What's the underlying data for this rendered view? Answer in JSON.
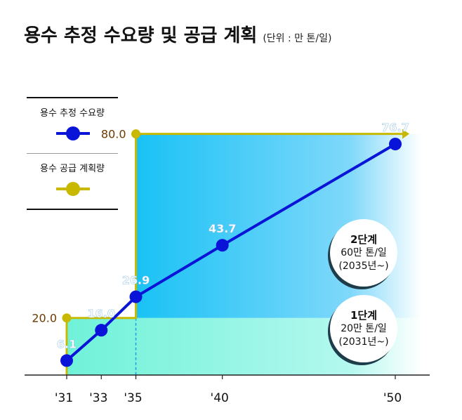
{
  "title": "용수 추정 수요량 및 공급 계획",
  "unit": "(단위 : 만 톤/일)",
  "legend": {
    "demand": "용수 추정 수요량",
    "supply": "용수 공급 계획량"
  },
  "phases": [
    {
      "name": "2단계",
      "capacity": "60만 톤/일",
      "year": "(2035년~)"
    },
    {
      "name": "1단계",
      "capacity": "20만 톤/일",
      "year": "(2031년~)"
    }
  ],
  "colors": {
    "demand": "#0a14d8",
    "supply": "#c9b800",
    "phase1": "#7ff5dc",
    "phase2": "#1ec6f5",
    "axis_value": "#6b3a00"
  },
  "chart_data": {
    "type": "line",
    "title": "용수 추정 수요량 및 공급 계획",
    "x_ticks": [
      "'31",
      "'33",
      "'35",
      "'40",
      "'50"
    ],
    "series": [
      {
        "name": "용수 추정 수요량",
        "x": [
          2031,
          2033,
          2035,
          2040,
          2050
        ],
        "values": [
          6.1,
          16.0,
          26.9,
          43.7,
          76.7
        ],
        "labels": [
          "6.1",
          "16.0",
          "26.9",
          "43.7",
          "76.7"
        ]
      },
      {
        "name": "용수 공급 계획량",
        "steps": [
          {
            "x_start": 2031,
            "x_end": 2035,
            "value": 20.0,
            "label": "20.0"
          },
          {
            "x_start": 2035,
            "x_end": 2050,
            "value": 80.0,
            "label": "80.0"
          }
        ]
      }
    ],
    "xlim": [
      2031,
      2050
    ],
    "legend_position": "left",
    "grid": false
  }
}
